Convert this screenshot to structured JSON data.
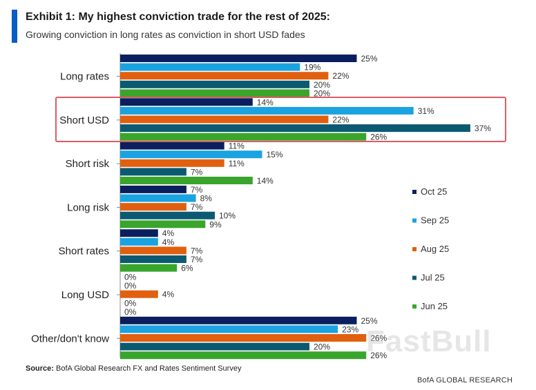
{
  "header": {
    "title": "Exhibit 1: My highest conviction trade for the rest of 2025:",
    "subtitle": "Growing conviction in long rates as conviction in short USD fades"
  },
  "footer": {
    "source_label": "Source:",
    "source_text": " BofA Global Research FX and Rates Sentiment Survey",
    "brand": "BofA GLOBAL RESEARCH"
  },
  "watermark": "FastBull",
  "highlight": {
    "category": "Short USD",
    "color": "#e05a62"
  },
  "chart_data": {
    "type": "bar",
    "orientation": "horizontal",
    "title": "Exhibit 1: My highest conviction trade for the rest of 2025:",
    "subtitle": "Growing conviction in long rates as conviction in short USD fades",
    "xlabel": "",
    "ylabel": "",
    "xlim": [
      0,
      40
    ],
    "grid": false,
    "legend_position": "right",
    "value_suffix": "%",
    "categories": [
      "Long rates",
      "Short USD",
      "Short risk",
      "Long risk",
      "Short rates",
      "Long USD",
      "Other/don't know"
    ],
    "series": [
      {
        "name": "Oct 25",
        "color": "#0b1f5e",
        "values": [
          25,
          14,
          11,
          7,
          4,
          0,
          25
        ]
      },
      {
        "name": "Sep 25",
        "color": "#1aa3e0",
        "values": [
          19,
          31,
          15,
          8,
          4,
          0,
          23
        ]
      },
      {
        "name": "Aug 25",
        "color": "#e0600f",
        "values": [
          22,
          22,
          11,
          7,
          7,
          4,
          26
        ]
      },
      {
        "name": "Jul 25",
        "color": "#0c5a72",
        "values": [
          20,
          37,
          7,
          10,
          7,
          0,
          20
        ]
      },
      {
        "name": "Jun 25",
        "color": "#3aa52c",
        "values": [
          20,
          26,
          14,
          9,
          6,
          0,
          26
        ]
      }
    ]
  }
}
